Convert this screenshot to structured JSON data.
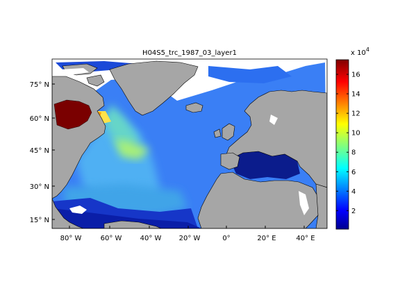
{
  "title": "H04S5_trc_1987_03_layer1",
  "map": {
    "lat_ticks": [
      "15° N",
      "30° N",
      "45° N",
      "60° N",
      "75° N"
    ],
    "lon_ticks": [
      "80° W",
      "60° W",
      "40° W",
      "20° W",
      "0°",
      "20° E",
      "40° E"
    ],
    "land_color": "#a6a6a6",
    "coast_color": "#000000",
    "nodata_color": "#ffffff"
  },
  "colorbar": {
    "exponent_label": "x 10",
    "exponent_power": "4",
    "tick_labels": [
      "2",
      "4",
      "6",
      "8",
      "10",
      "12",
      "14",
      "16"
    ],
    "tick_values": [
      2,
      4,
      6,
      8,
      10,
      12,
      14,
      16
    ],
    "range": [
      0.1,
      17.5
    ],
    "colormap": "jet"
  }
}
